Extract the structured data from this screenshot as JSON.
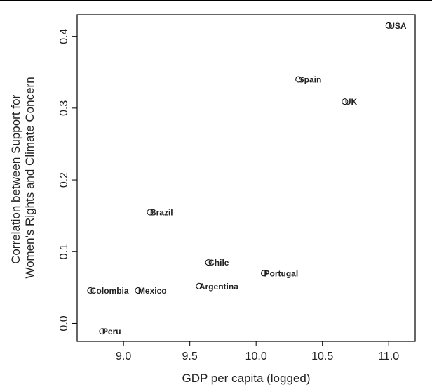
{
  "chart_data": {
    "type": "scatter",
    "xlabel": "GDP per capita (logged)",
    "ylabel": [
      "Correlation between Support for",
      "Women's Rights and Climate Concern"
    ],
    "xlim": [
      8.65,
      11.2
    ],
    "ylim": [
      -0.025,
      0.43
    ],
    "xticks": [
      "9.0",
      "9.5",
      "10.0",
      "10.5",
      "11.0"
    ],
    "yticks": [
      "0.0",
      "0.1",
      "0.2",
      "0.3",
      "0.4"
    ],
    "grid": false,
    "points": [
      {
        "label": "USA",
        "x": 11.0,
        "y": 0.415
      },
      {
        "label": "Spain",
        "x": 10.32,
        "y": 0.34
      },
      {
        "label": "UK",
        "x": 10.67,
        "y": 0.309
      },
      {
        "label": "Brazil",
        "x": 9.2,
        "y": 0.155
      },
      {
        "label": "Chile",
        "x": 9.64,
        "y": 0.085
      },
      {
        "label": "Portugal",
        "x": 10.06,
        "y": 0.07
      },
      {
        "label": "Argentina",
        "x": 9.57,
        "y": 0.052
      },
      {
        "label": "Colombia",
        "x": 8.75,
        "y": 0.046
      },
      {
        "label": "Mexico",
        "x": 9.11,
        "y": 0.046
      },
      {
        "label": "Peru",
        "x": 8.84,
        "y": -0.011
      }
    ]
  }
}
